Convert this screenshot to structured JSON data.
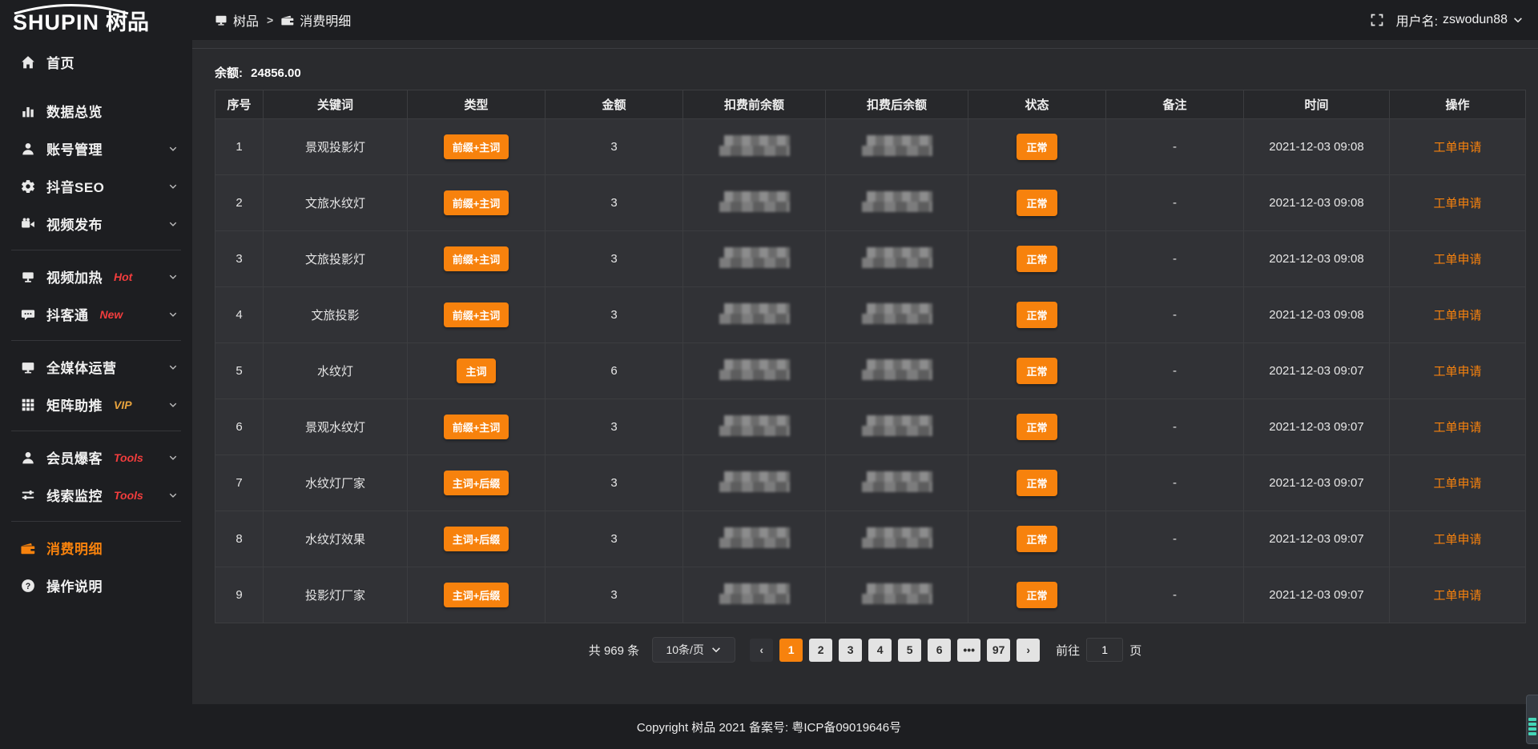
{
  "app": {
    "logo_en": "SHUPIN",
    "logo_cn": "树品"
  },
  "topbar": {
    "breadcrumb": [
      {
        "label": "树品",
        "icon": "monitor-icon"
      },
      {
        "label": "消费明细",
        "icon": "wallet-icon"
      }
    ],
    "separator": ">",
    "username_label": "用户名:",
    "username": "zswodun88"
  },
  "sidebar": {
    "items": [
      {
        "id": "home",
        "icon": "home-icon",
        "label": "首页",
        "chevron": false,
        "divider_after": false,
        "active": false
      },
      {
        "id": "data-overview",
        "icon": "chart-icon",
        "label": "数据总览",
        "chevron": false,
        "divider_after": false,
        "active": false
      },
      {
        "id": "account-mgmt",
        "icon": "user-icon",
        "label": "账号管理",
        "chevron": true,
        "divider_after": false,
        "active": false
      },
      {
        "id": "douyin-seo",
        "icon": "gear-icon",
        "label": "抖音SEO",
        "chevron": true,
        "divider_after": false,
        "active": false
      },
      {
        "id": "video-publish",
        "icon": "video-icon",
        "label": "视频发布",
        "chevron": true,
        "divider_after": true,
        "active": false
      },
      {
        "id": "video-heat",
        "icon": "screen-icon",
        "label": "视频加热",
        "badge": "Hot",
        "badge_color": "#f23d3d",
        "chevron": true,
        "divider_after": false,
        "active": false
      },
      {
        "id": "doukatong",
        "icon": "chat-icon",
        "label": "抖客通",
        "badge": "New",
        "badge_color": "#f23d3d",
        "chevron": true,
        "divider_after": true,
        "active": false
      },
      {
        "id": "omni-media",
        "icon": "monitor-icon",
        "label": "全媒体运营",
        "chevron": true,
        "divider_after": false,
        "active": false
      },
      {
        "id": "matrix-boost",
        "icon": "grid-icon",
        "label": "矩阵助推",
        "badge": "VIP",
        "badge_color": "#e8a33d",
        "chevron": true,
        "divider_after": true,
        "active": false
      },
      {
        "id": "member-burst",
        "icon": "user-icon",
        "label": "会员爆客",
        "badge": "Tools",
        "badge_color": "#f23d3d",
        "chevron": true,
        "divider_after": false,
        "active": false
      },
      {
        "id": "lead-monitor",
        "icon": "sliders-icon",
        "label": "线索监控",
        "badge": "Tools",
        "badge_color": "#f23d3d",
        "chevron": true,
        "divider_after": true,
        "active": false
      },
      {
        "id": "consume-detail",
        "icon": "wallet-icon",
        "label": "消费明细",
        "chevron": false,
        "divider_after": false,
        "active": true
      },
      {
        "id": "instructions",
        "icon": "help-icon",
        "label": "操作说明",
        "chevron": false,
        "divider_after": false,
        "active": false
      }
    ]
  },
  "main": {
    "balance_label": "余额:",
    "balance_value": "24856.00",
    "table": {
      "columns": [
        "序号",
        "关键词",
        "类型",
        "金额",
        "扣费前余额",
        "扣费后余额",
        "状态",
        "备注",
        "时间",
        "操作"
      ],
      "rows": [
        {
          "seq": "1",
          "keyword": "景观投影灯",
          "type": "前缀+主词",
          "amount": "3",
          "before_masked": true,
          "after_masked": true,
          "status": "正常",
          "remark": "-",
          "time": "2021-12-03 09:08",
          "action": "工单申请"
        },
        {
          "seq": "2",
          "keyword": "文旅水纹灯",
          "type": "前缀+主词",
          "amount": "3",
          "before_masked": true,
          "after_masked": true,
          "status": "正常",
          "remark": "-",
          "time": "2021-12-03 09:08",
          "action": "工单申请"
        },
        {
          "seq": "3",
          "keyword": "文旅投影灯",
          "type": "前缀+主词",
          "amount": "3",
          "before_masked": true,
          "after_masked": true,
          "status": "正常",
          "remark": "-",
          "time": "2021-12-03 09:08",
          "action": "工单申请"
        },
        {
          "seq": "4",
          "keyword": "文旅投影",
          "type": "前缀+主词",
          "amount": "3",
          "before_masked": true,
          "after_masked": true,
          "status": "正常",
          "remark": "-",
          "time": "2021-12-03 09:08",
          "action": "工单申请"
        },
        {
          "seq": "5",
          "keyword": "水纹灯",
          "type": "主词",
          "amount": "6",
          "before_masked": true,
          "after_masked": true,
          "status": "正常",
          "remark": "-",
          "time": "2021-12-03 09:07",
          "action": "工单申请"
        },
        {
          "seq": "6",
          "keyword": "景观水纹灯",
          "type": "前缀+主词",
          "amount": "3",
          "before_masked": true,
          "after_masked": true,
          "status": "正常",
          "remark": "-",
          "time": "2021-12-03 09:07",
          "action": "工单申请"
        },
        {
          "seq": "7",
          "keyword": "水纹灯厂家",
          "type": "主词+后缀",
          "amount": "3",
          "before_masked": true,
          "after_masked": true,
          "status": "正常",
          "remark": "-",
          "time": "2021-12-03 09:07",
          "action": "工单申请"
        },
        {
          "seq": "8",
          "keyword": "水纹灯效果",
          "type": "主词+后缀",
          "amount": "3",
          "before_masked": true,
          "after_masked": true,
          "status": "正常",
          "remark": "-",
          "time": "2021-12-03 09:07",
          "action": "工单申请"
        },
        {
          "seq": "9",
          "keyword": "投影灯厂家",
          "type": "主词+后缀",
          "amount": "3",
          "before_masked": true,
          "after_masked": true,
          "status": "正常",
          "remark": "-",
          "time": "2021-12-03 09:07",
          "action": "工单申请"
        }
      ]
    },
    "pagination": {
      "total_label": "共 969 条",
      "page_size": "10条/页",
      "prev_label": "‹",
      "next_label": "›",
      "pages": [
        "1",
        "2",
        "3",
        "4",
        "5",
        "6",
        "•••",
        "97"
      ],
      "active_page": "1",
      "goto_label": "前往",
      "goto_value": "1",
      "goto_suffix": "页"
    }
  },
  "footer": {
    "text": "Copyright 树品 2021 备案号: 粤ICP备09019646号"
  },
  "colors": {
    "accent": "#f7820d",
    "badge_red": "#f23d3d",
    "badge_gold": "#e8a33d",
    "sidebar_bg": "#1d1e21",
    "content_bg": "#2a2b2e",
    "row_bg": "#313236"
  }
}
